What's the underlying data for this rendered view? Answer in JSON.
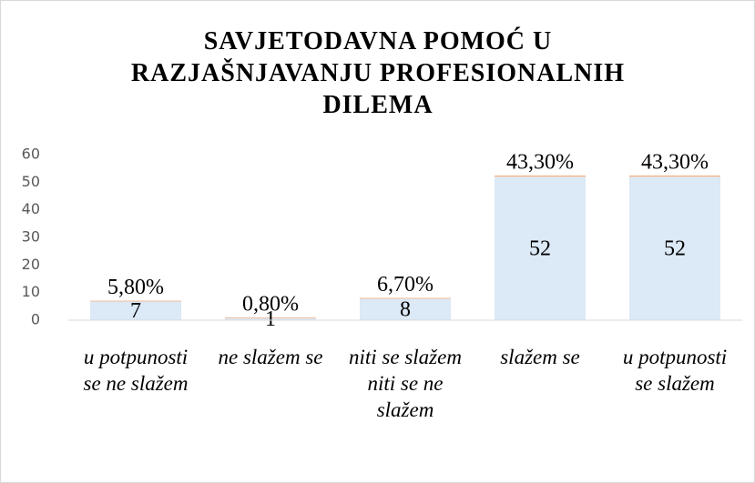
{
  "chart_data": {
    "type": "stacked_bar",
    "title": "SAVJETODAVNA POMOĆ U RAZJAŠNJAVANJU PROFESIONALNIH DILEMA",
    "categories": [
      "u potpunosti se ne slažem",
      "ne slažem se",
      "niti se slažem niti se ne slažem",
      "slažem se",
      "u potpunosti se slažem"
    ],
    "series": [
      {
        "color": "#dce9f6",
        "values": [
          7,
          1,
          8,
          52,
          52
        ]
      },
      {
        "color": "#f4b183",
        "values": [
          0.058,
          0.008,
          0.067,
          0.433,
          0.433
        ],
        "value_labels": [
          "5,80%",
          "0,80%",
          "6,70%",
          "43,30%",
          "43,30%"
        ]
      }
    ],
    "ylim": [
      0,
      60
    ],
    "yticks": [
      0,
      10,
      20,
      30,
      40,
      50,
      60
    ],
    "grid": false
  }
}
